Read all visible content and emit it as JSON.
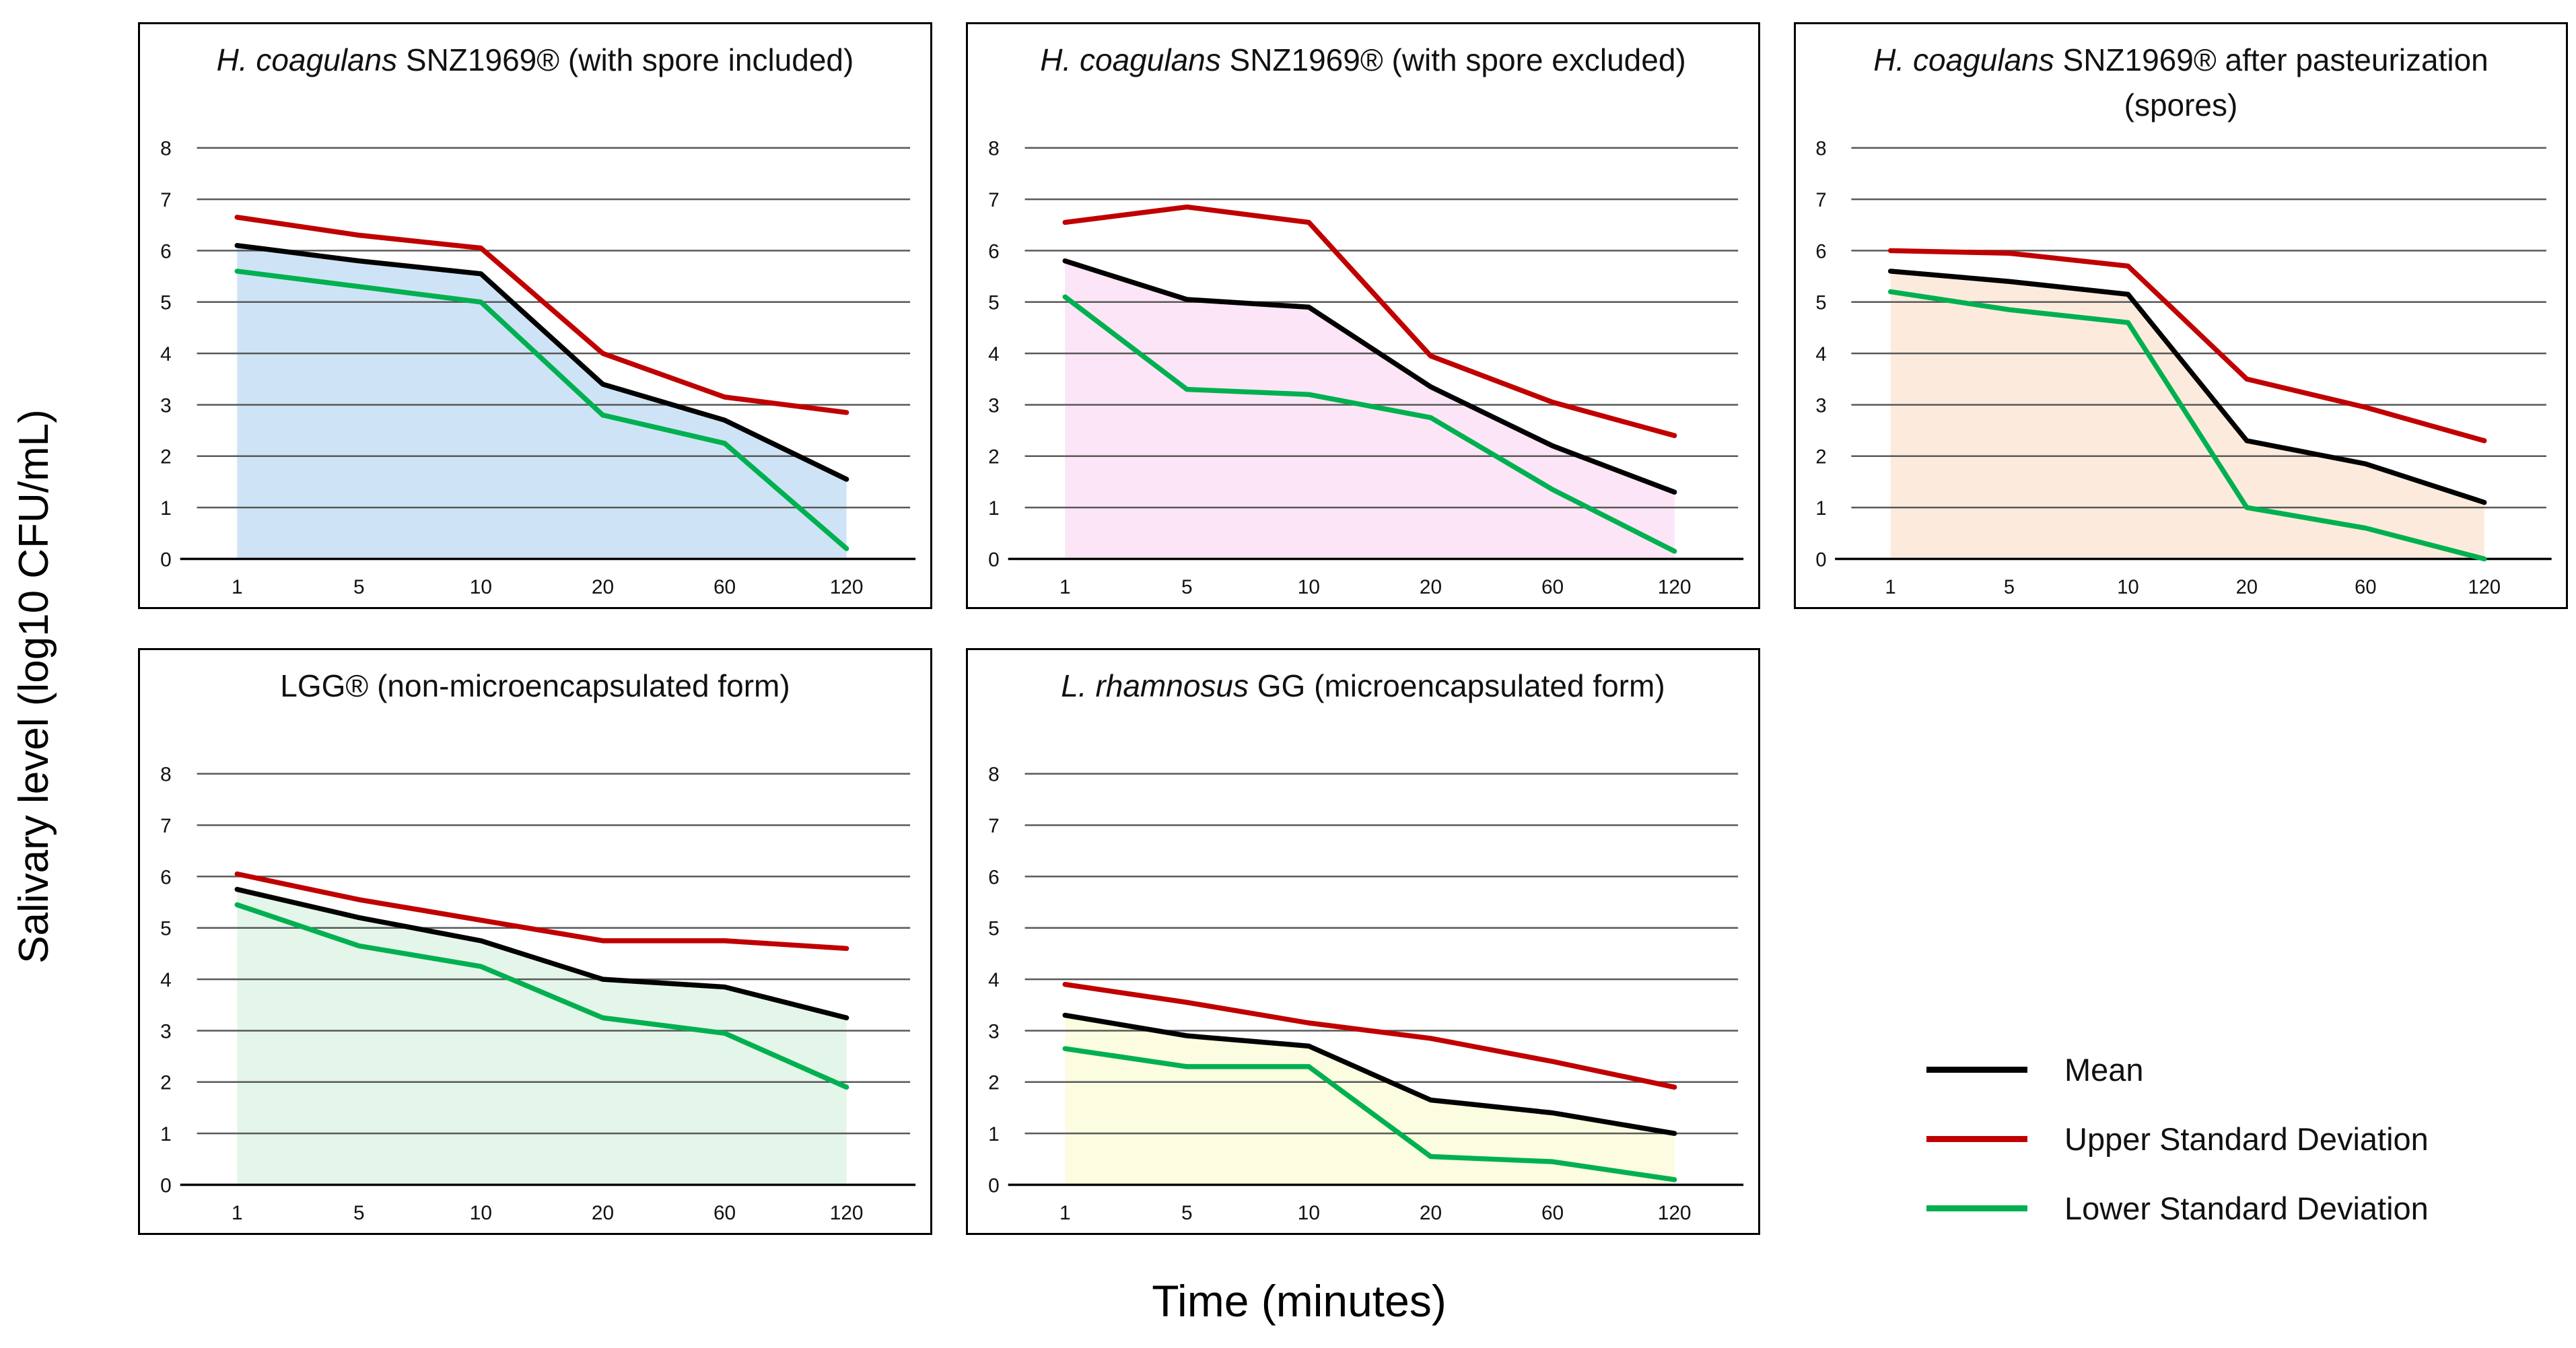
{
  "figure": {
    "y_axis_label": "Salivary level (log10 CFU/mL)",
    "x_axis_label": "Time (minutes)"
  },
  "legend": {
    "items": [
      {
        "label": "Mean",
        "color": "#000000"
      },
      {
        "label": "Upper Standard Deviation",
        "color": "#C00000"
      },
      {
        "label": "Lower Standard Deviation",
        "color": "#00B050"
      }
    ]
  },
  "chart_data": [
    {
      "type": "line",
      "title_italic": "H. coagulans",
      "title_rest": " SNZ1969® (with spore included)",
      "x": [
        1,
        5,
        10,
        20,
        60,
        120
      ],
      "xlabel": "Time (minutes)",
      "ylabel": "Salivary level (log10 CFU/mL)",
      "ylim": [
        0,
        8
      ],
      "yticks": [
        8,
        7,
        6,
        5,
        4,
        3,
        2,
        1,
        0
      ],
      "grid": true,
      "fill_under": "Mean",
      "fill_color": "#CFE3F6",
      "series": [
        {
          "name": "Mean",
          "color": "#000000",
          "values": [
            6.1,
            5.8,
            5.55,
            3.4,
            2.7,
            1.55
          ]
        },
        {
          "name": "Upper Standard Deviation",
          "color": "#C00000",
          "values": [
            6.65,
            6.3,
            6.05,
            4.0,
            3.15,
            2.85
          ]
        },
        {
          "name": "Lower Standard Deviation",
          "color": "#00B050",
          "values": [
            5.6,
            5.3,
            5.0,
            2.8,
            2.25,
            0.2
          ]
        }
      ]
    },
    {
      "type": "line",
      "title_italic": "H. coagulans",
      "title_rest": " SNZ1969® (with spore excluded)",
      "x": [
        1,
        5,
        10,
        20,
        60,
        120
      ],
      "xlabel": "Time (minutes)",
      "ylabel": "Salivary level (log10 CFU/mL)",
      "ylim": [
        0,
        8
      ],
      "yticks": [
        8,
        7,
        6,
        5,
        4,
        3,
        2,
        1,
        0
      ],
      "grid": true,
      "fill_under": "Mean",
      "fill_color": "#FBE5F6",
      "series": [
        {
          "name": "Mean",
          "color": "#000000",
          "values": [
            5.8,
            5.05,
            4.9,
            3.35,
            2.2,
            1.3
          ]
        },
        {
          "name": "Upper Standard Deviation",
          "color": "#C00000",
          "values": [
            6.55,
            6.85,
            6.55,
            3.95,
            3.05,
            2.4
          ]
        },
        {
          "name": "Lower Standard Deviation",
          "color": "#00B050",
          "values": [
            5.1,
            3.3,
            3.2,
            2.75,
            1.35,
            0.15
          ]
        }
      ]
    },
    {
      "type": "line",
      "title_italic": "H. coagulans",
      "title_rest": " SNZ1969® after pasteurization (spores)",
      "x": [
        1,
        5,
        10,
        20,
        60,
        120
      ],
      "xlabel": "Time (minutes)",
      "ylabel": "Salivary level (log10 CFU/mL)",
      "ylim": [
        0,
        8
      ],
      "yticks": [
        8,
        7,
        6,
        5,
        4,
        3,
        2,
        1,
        0
      ],
      "grid": true,
      "fill_under": "Mean",
      "fill_color": "#FCEBDD",
      "series": [
        {
          "name": "Mean",
          "color": "#000000",
          "values": [
            5.6,
            5.4,
            5.15,
            2.3,
            1.85,
            1.1
          ]
        },
        {
          "name": "Upper Standard Deviation",
          "color": "#C00000",
          "values": [
            6.0,
            5.95,
            5.7,
            3.5,
            2.95,
            2.3
          ]
        },
        {
          "name": "Lower Standard Deviation",
          "color": "#00B050",
          "values": [
            5.2,
            4.85,
            4.6,
            1.0,
            0.6,
            0.0
          ]
        }
      ]
    },
    {
      "type": "line",
      "title_italic": "",
      "title_rest": "LGG® (non-microencapsulated form)",
      "x": [
        1,
        5,
        10,
        20,
        60,
        120
      ],
      "xlabel": "Time (minutes)",
      "ylabel": "Salivary level (log10 CFU/mL)",
      "ylim": [
        0,
        8
      ],
      "yticks": [
        8,
        7,
        6,
        5,
        4,
        3,
        2,
        1,
        0
      ],
      "grid": true,
      "fill_under": "Mean",
      "fill_color": "#E4F5E9",
      "series": [
        {
          "name": "Mean",
          "color": "#000000",
          "values": [
            5.75,
            5.2,
            4.75,
            4.0,
            3.85,
            3.25
          ]
        },
        {
          "name": "Upper Standard Deviation",
          "color": "#C00000",
          "values": [
            6.05,
            5.55,
            5.15,
            4.75,
            4.75,
            4.6
          ]
        },
        {
          "name": "Lower Standard Deviation",
          "color": "#00B050",
          "values": [
            5.45,
            4.65,
            4.25,
            3.25,
            2.95,
            1.9
          ]
        }
      ]
    },
    {
      "type": "line",
      "title_italic": "L. rhamnosus",
      "title_rest": " GG (microencapsulated form)",
      "x": [
        1,
        5,
        10,
        20,
        60,
        120
      ],
      "xlabel": "Time (minutes)",
      "ylabel": "Salivary level (log10 CFU/mL)",
      "ylim": [
        0,
        8
      ],
      "yticks": [
        8,
        7,
        6,
        5,
        4,
        3,
        2,
        1,
        0
      ],
      "grid": true,
      "fill_under": "Mean",
      "fill_color": "#FCFCE0",
      "series": [
        {
          "name": "Mean",
          "color": "#000000",
          "values": [
            3.3,
            2.9,
            2.7,
            1.65,
            1.4,
            1.0
          ]
        },
        {
          "name": "Upper Standard Deviation",
          "color": "#C00000",
          "values": [
            3.9,
            3.55,
            3.15,
            2.85,
            2.4,
            1.9
          ]
        },
        {
          "name": "Lower Standard Deviation",
          "color": "#00B050",
          "values": [
            2.65,
            2.3,
            2.3,
            0.55,
            0.45,
            0.1
          ]
        }
      ]
    }
  ]
}
